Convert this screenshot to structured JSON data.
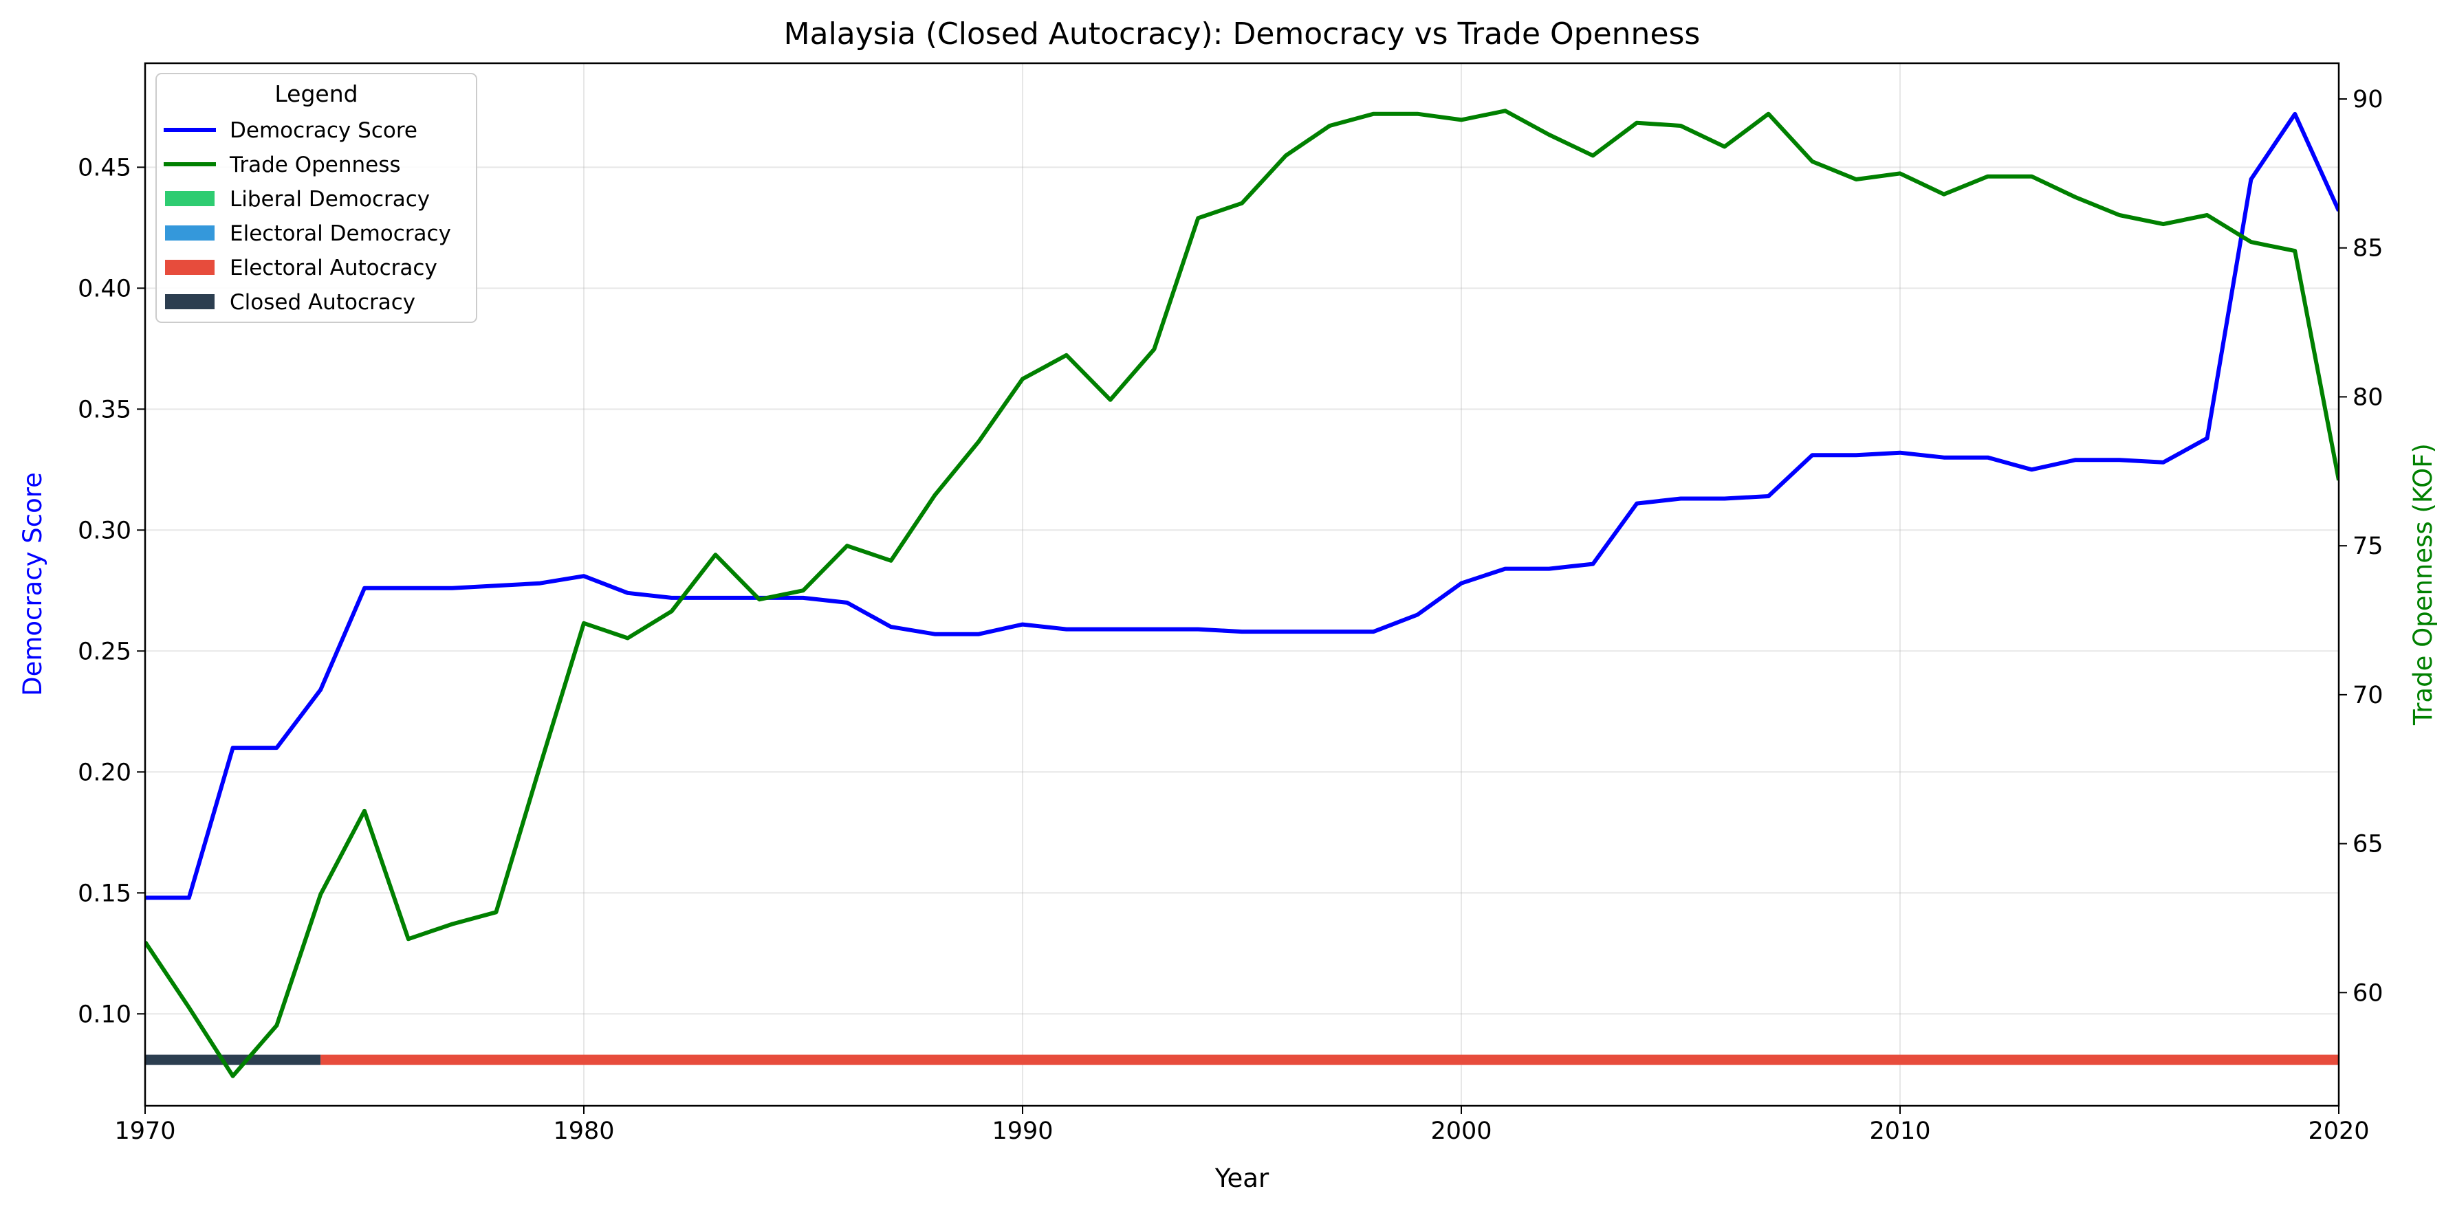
{
  "chart_data": {
    "type": "line",
    "title": "Malaysia (Closed Autocracy): Democracy vs Trade Openness",
    "xlabel": "Year",
    "ylabel_left": "Democracy Score",
    "ylabel_right": "Trade Openness (KOF)",
    "xlim": [
      1970,
      2020
    ],
    "ylim_left": [
      0.062,
      0.493
    ],
    "ylim_right": [
      56.2,
      91.2
    ],
    "x_ticks": [
      "1970",
      "1980",
      "1990",
      "2000",
      "2010",
      "2020"
    ],
    "y_left_ticks": [
      "0.10",
      "0.15",
      "0.20",
      "0.25",
      "0.30",
      "0.35",
      "0.40",
      "0.45"
    ],
    "y_right_ticks": [
      "60",
      "65",
      "70",
      "75",
      "80",
      "85",
      "90"
    ],
    "grid": true,
    "legend": {
      "title": "Legend",
      "placement": "top-left",
      "entries": [
        {
          "label": "Democracy Score",
          "kind": "line",
          "color": "#0000ff"
        },
        {
          "label": "Trade Openness",
          "kind": "line",
          "color": "#008000"
        },
        {
          "label": "Liberal Democracy",
          "kind": "patch",
          "color": "#2ecc71"
        },
        {
          "label": "Electoral Democracy",
          "kind": "patch",
          "color": "#3498db"
        },
        {
          "label": "Electoral Autocracy",
          "kind": "patch",
          "color": "#e74c3c"
        },
        {
          "label": "Closed Autocracy",
          "kind": "patch",
          "color": "#2c3e50"
        }
      ]
    },
    "x": [
      1970,
      1971,
      1972,
      1973,
      1974,
      1975,
      1976,
      1977,
      1978,
      1979,
      1980,
      1981,
      1982,
      1983,
      1984,
      1985,
      1986,
      1987,
      1988,
      1989,
      1990,
      1991,
      1992,
      1993,
      1994,
      1995,
      1996,
      1997,
      1998,
      1999,
      2000,
      2001,
      2002,
      2003,
      2004,
      2005,
      2006,
      2007,
      2008,
      2009,
      2010,
      2011,
      2012,
      2013,
      2014,
      2015,
      2016,
      2017,
      2018,
      2019,
      2020
    ],
    "series": [
      {
        "name": "Democracy Score",
        "axis": "left",
        "color": "#0000ff",
        "values": [
          0.148,
          0.148,
          0.21,
          0.21,
          0.234,
          0.276,
          0.276,
          0.276,
          0.277,
          0.278,
          0.281,
          0.274,
          0.272,
          0.272,
          0.272,
          0.272,
          0.27,
          0.26,
          0.257,
          0.257,
          0.261,
          0.259,
          0.259,
          0.259,
          0.259,
          0.258,
          0.258,
          0.258,
          0.258,
          0.265,
          0.278,
          0.284,
          0.284,
          0.286,
          0.311,
          0.313,
          0.313,
          0.314,
          0.331,
          0.331,
          0.332,
          0.33,
          0.33,
          0.325,
          0.329,
          0.329,
          0.328,
          0.338,
          0.445,
          0.472,
          0.432
        ]
      },
      {
        "name": "Trade Openness",
        "axis": "right",
        "color": "#008000",
        "values": [
          61.7,
          59.5,
          57.2,
          58.9,
          63.3,
          66.1,
          61.8,
          62.3,
          62.7,
          67.6,
          72.4,
          71.9,
          72.8,
          74.7,
          73.2,
          73.5,
          75.0,
          74.5,
          76.7,
          78.5,
          80.6,
          81.4,
          79.9,
          81.6,
          86.0,
          86.5,
          88.1,
          89.1,
          89.5,
          89.5,
          89.3,
          89.6,
          88.8,
          88.1,
          89.2,
          89.1,
          88.4,
          89.5,
          87.9,
          87.3,
          87.5,
          86.8,
          87.4,
          87.4,
          86.7,
          86.1,
          85.8,
          86.1,
          85.2,
          84.9,
          77.2
        ]
      }
    ],
    "regime_bar": {
      "y_value": 0.081,
      "segments": [
        {
          "label": "Closed Autocracy",
          "from": 1970,
          "to": 1974,
          "color": "#2c3e50"
        },
        {
          "label": "Electoral Autocracy",
          "from": 1974,
          "to": 2020,
          "color": "#e74c3c"
        }
      ]
    }
  }
}
